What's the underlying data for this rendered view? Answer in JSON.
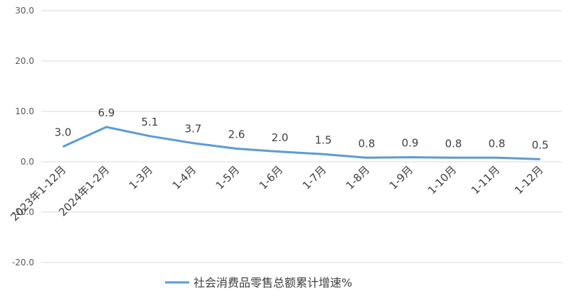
{
  "chart_data": {
    "type": "line",
    "categories": [
      "2023年1-12月",
      "2024年1-2月",
      "1-3月",
      "1-4月",
      "1-5月",
      "1-6月",
      "1-7月",
      "1-8月",
      "1-9月",
      "1-10月",
      "1-11月",
      "1-12月"
    ],
    "series": [
      {
        "name": "社会消费品零售总额累计增速%",
        "values": [
          3.0,
          6.9,
          5.1,
          3.7,
          2.6,
          2.0,
          1.5,
          0.8,
          0.9,
          0.8,
          0.8,
          0.5
        ],
        "labels": [
          "3.0",
          "6.9",
          "5.1",
          "3.7",
          "2.6",
          "2.0",
          "1.5",
          "0.8",
          "0.9",
          "0.8",
          "0.8",
          "0.5"
        ],
        "color": "#5b9bd5"
      }
    ],
    "ylim": [
      -20,
      30
    ],
    "yticks": [
      "-20.0",
      "-10.0",
      "0.0",
      "10.0",
      "20.0",
      "30.0"
    ],
    "grid": true,
    "gridColor": "#d9d9d9",
    "legend": "bottom-center",
    "title": "",
    "xlabel": "",
    "ylabel": ""
  }
}
